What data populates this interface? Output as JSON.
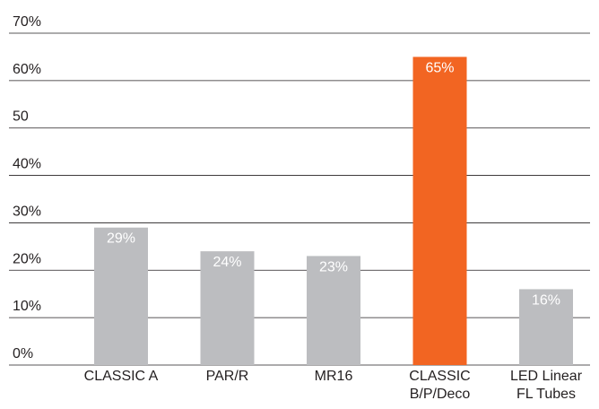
{
  "chart_data": {
    "type": "bar",
    "categories": [
      "CLASSIC A",
      "PAR/R",
      "MR16",
      "CLASSIC B/P/Deco",
      "LED Linear FL Tubes"
    ],
    "category_lines": [
      [
        "CLASSIC A"
      ],
      [
        "PAR/R"
      ],
      [
        "MR16"
      ],
      [
        "CLASSIC",
        "B/P/Deco"
      ],
      [
        "LED Linear",
        "FL Tubes"
      ]
    ],
    "values": [
      29,
      24,
      23,
      65,
      16
    ],
    "data_labels": [
      "29%",
      "24%",
      "23%",
      "65%",
      "16%"
    ],
    "highlight_index": 3,
    "ylim": [
      0,
      70
    ],
    "y_ticks": [
      0,
      10,
      20,
      30,
      40,
      50,
      60,
      70
    ],
    "y_tick_labels": [
      "0%",
      "10%",
      "20%",
      "30%",
      "40%",
      "50",
      "60%",
      "70%"
    ],
    "grid": true,
    "colors": {
      "bar": "#bcbdc0",
      "highlight": "#f26522",
      "grid": "#231f20",
      "tick_text": "#231f20",
      "label_text": "#ffffff"
    }
  }
}
